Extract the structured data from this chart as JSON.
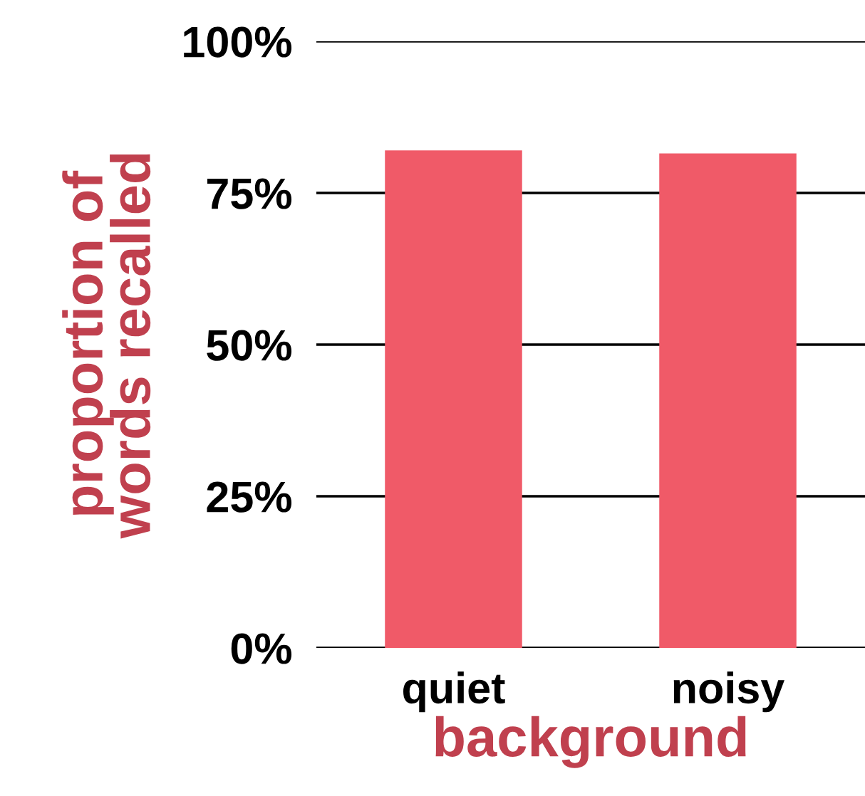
{
  "chart_data": {
    "type": "bar",
    "categories": [
      "quiet",
      "noisy"
    ],
    "values": [
      82,
      81.5
    ],
    "color": "#f05a68",
    "xlabel": "background",
    "ylabel": "proportion of\nwords recalled",
    "ylim": [
      0,
      100
    ],
    "yticks": [
      {
        "value": 0,
        "label": "0%"
      },
      {
        "value": 25,
        "label": "25%"
      },
      {
        "value": 50,
        "label": "50%"
      },
      {
        "value": 75,
        "label": "75%"
      },
      {
        "value": 100,
        "label": "100%"
      }
    ],
    "grid": "y",
    "legend": false
  }
}
